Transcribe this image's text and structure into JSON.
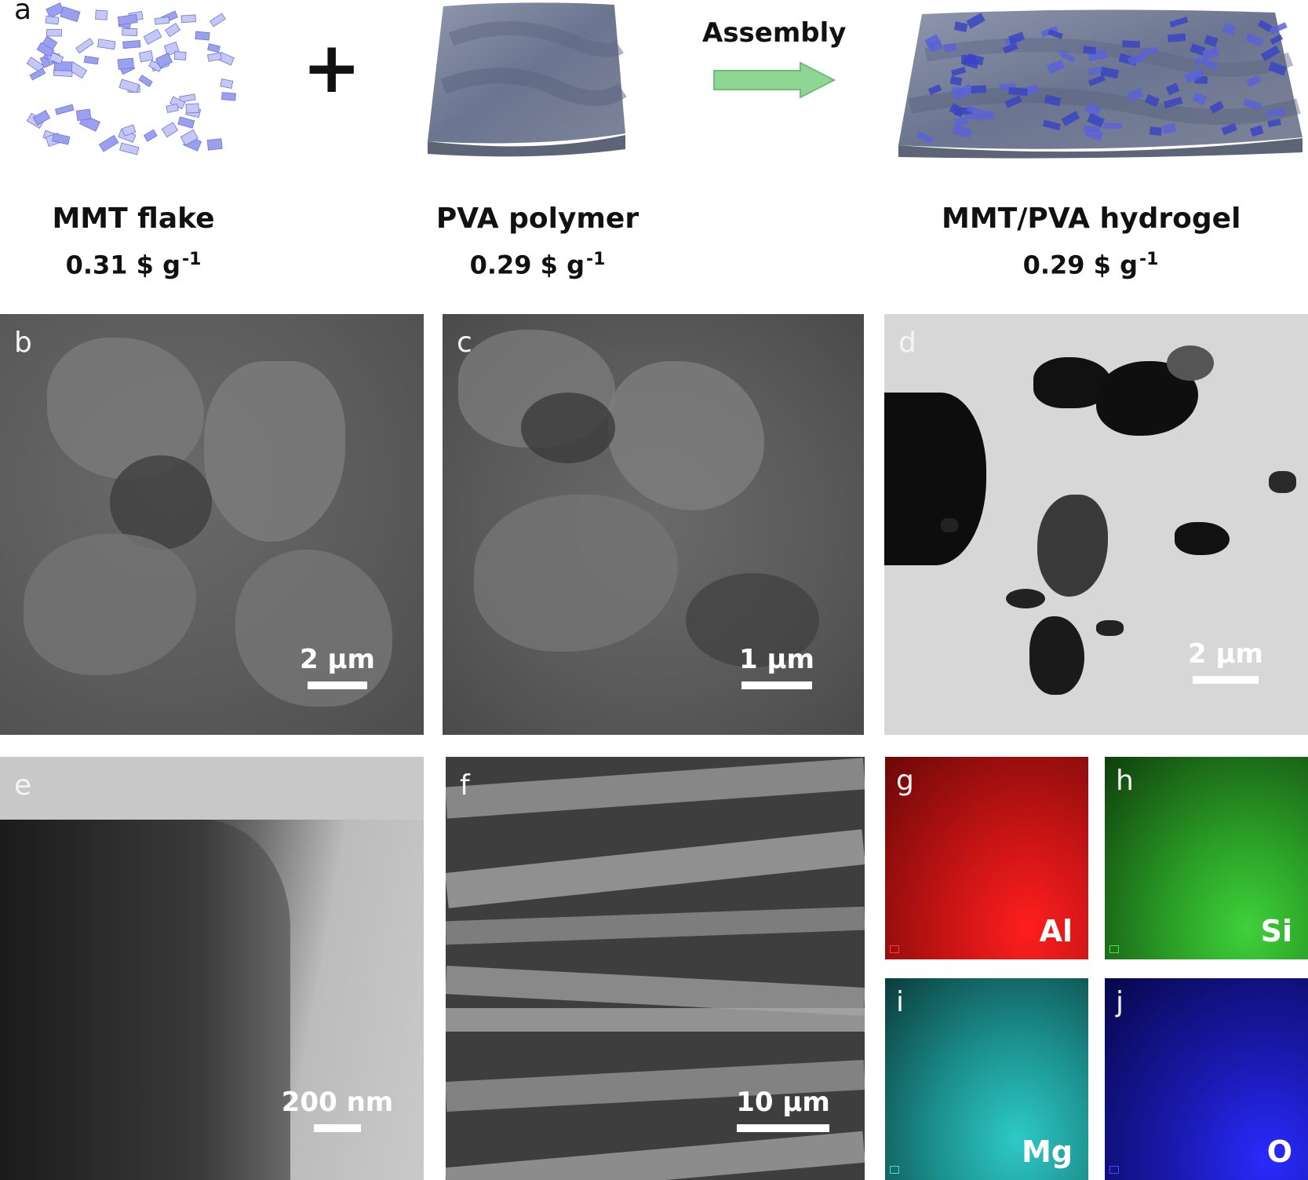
{
  "panel_a": {
    "letter": "a",
    "plus": "+",
    "arrow_text": "Assembly",
    "items": [
      {
        "name": "MMT flake",
        "price": "0.31 $ g",
        "price_exp": "-1"
      },
      {
        "name": "PVA polymer",
        "price": "0.29 $ g",
        "price_exp": "-1"
      },
      {
        "name": "MMT/PVA hydrogel",
        "price": "0.29 $ g",
        "price_exp": "-1"
      }
    ]
  },
  "panels": {
    "b": {
      "letter": "b",
      "scale": "2 µm"
    },
    "c": {
      "letter": "c",
      "scale": "1 µm"
    },
    "d": {
      "letter": "d",
      "scale": "2 µm"
    },
    "e": {
      "letter": "e",
      "scale": "200 nm"
    },
    "f": {
      "letter": "f",
      "scale": "10 µm"
    },
    "g": {
      "letter": "g",
      "element": "Al",
      "color": "#e01818"
    },
    "h": {
      "letter": "h",
      "element": "Si",
      "color": "#2fb52a"
    },
    "i": {
      "letter": "i",
      "element": "Mg",
      "color": "#25b5b3"
    },
    "j": {
      "letter": "j",
      "element": "O",
      "color": "#1b1bd8"
    }
  }
}
